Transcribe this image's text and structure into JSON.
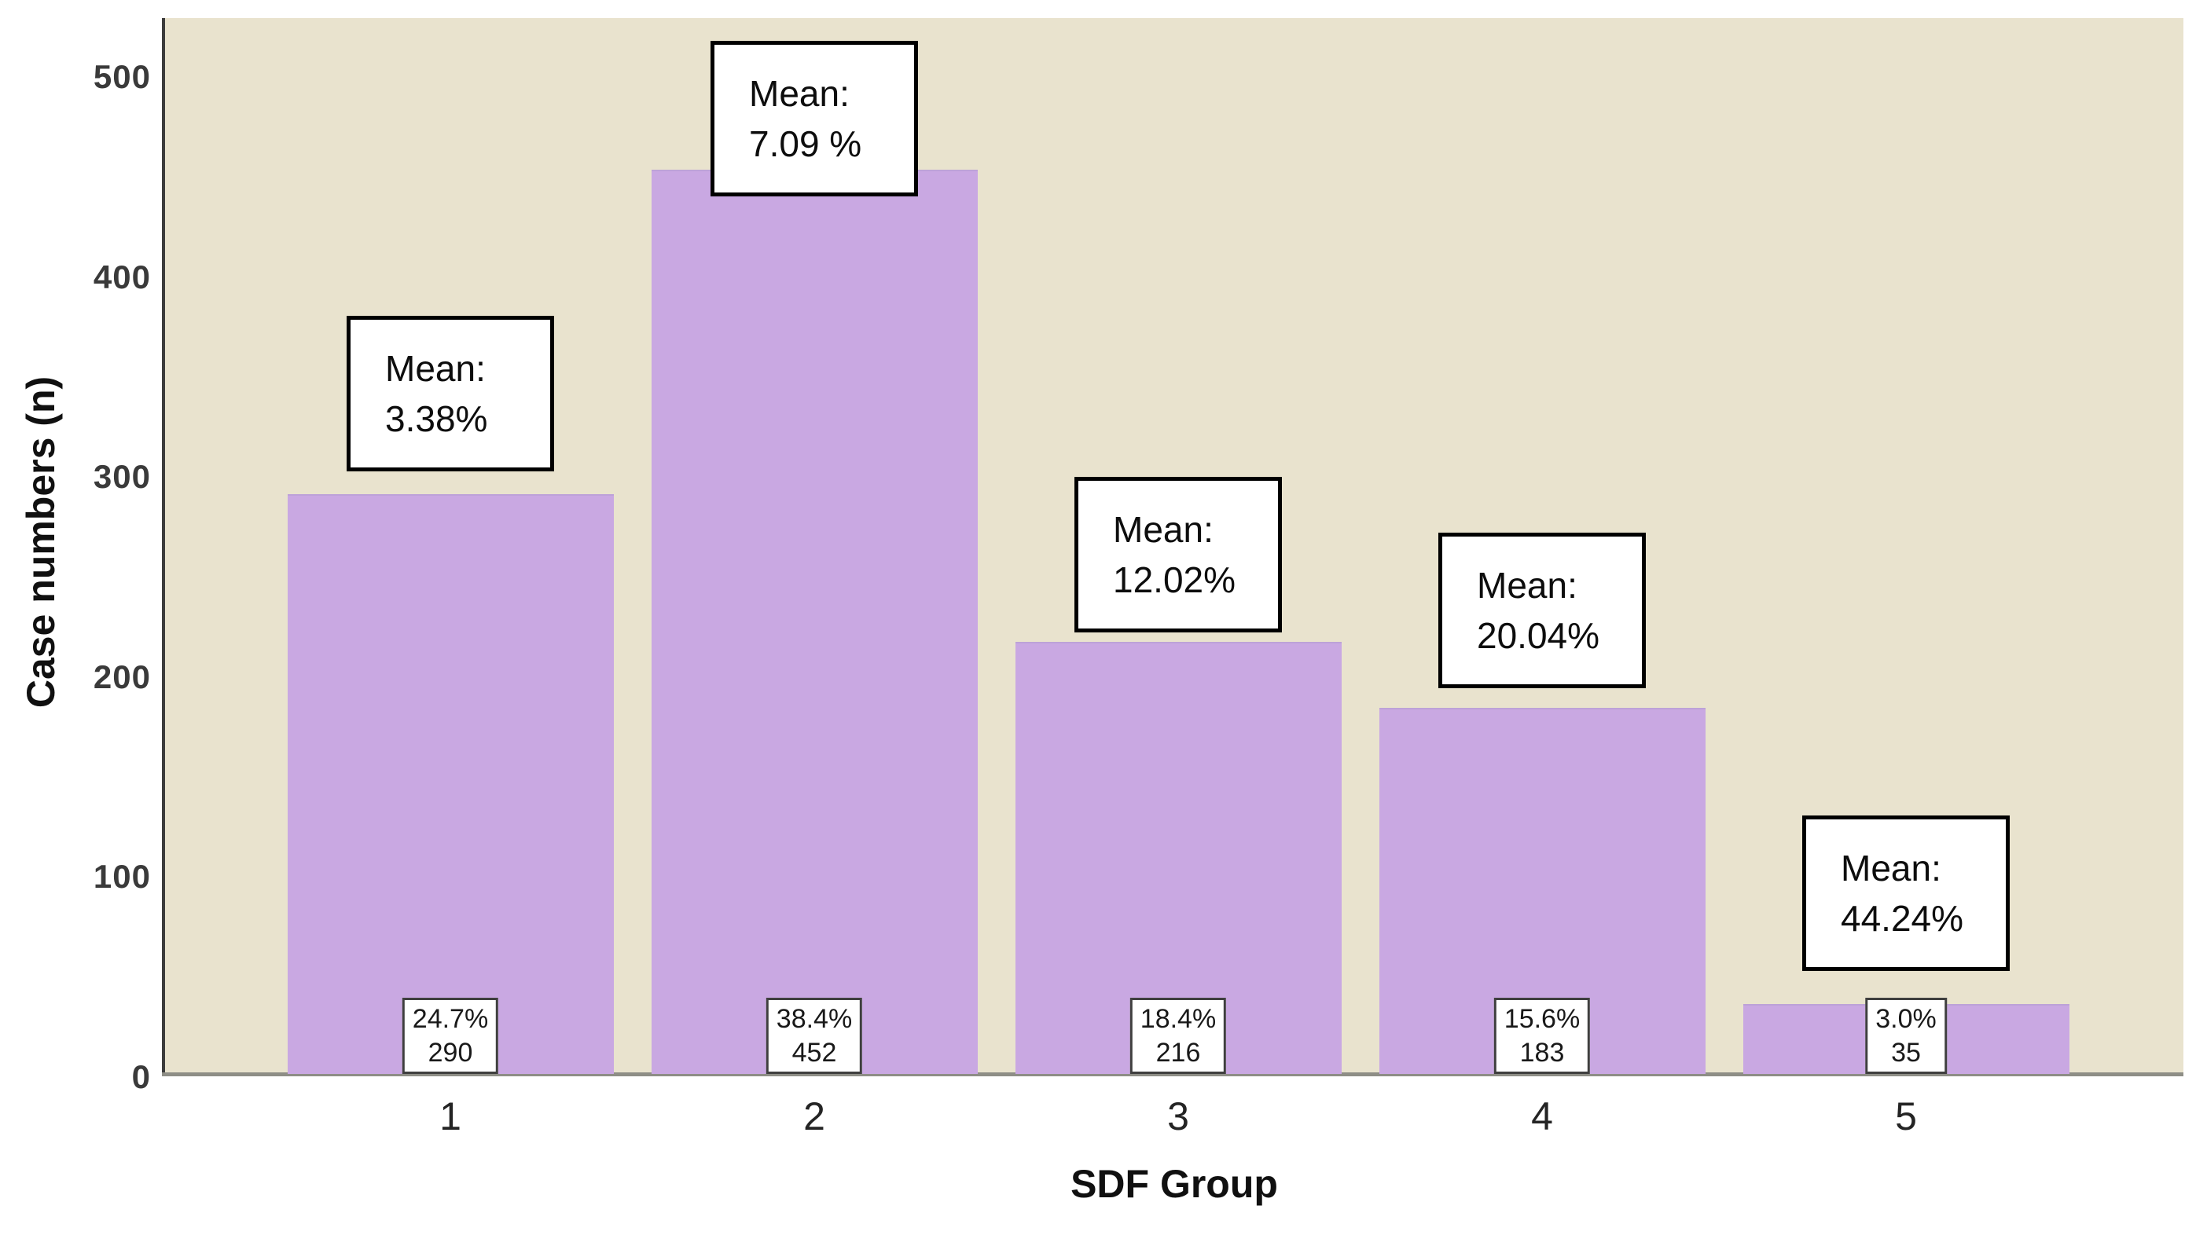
{
  "chart_data": {
    "type": "bar",
    "title": "",
    "xlabel": "SDF Group",
    "ylabel": "Case numbers (n)",
    "categories": [
      "1",
      "2",
      "3",
      "4",
      "5"
    ],
    "values": [
      290,
      452,
      216,
      183,
      35
    ],
    "yticks": [
      0,
      100,
      200,
      300,
      400,
      500
    ],
    "ylim": [
      0,
      528
    ],
    "grid": false,
    "legend": false,
    "colors": {
      "plot_background": "#e9e3ce",
      "bar_fill": "#c9a8e2",
      "bar_edge": "#bda2d8",
      "y_axis_line": "#3c3c3c",
      "x_baseline": "#8e8e86",
      "annotation_border": "#000000",
      "annotation_background": "#ffffff"
    },
    "mean_prefix": "Mean:",
    "bars": [
      {
        "category": "1",
        "value": 290,
        "percent_label": "24.7%",
        "count_label": "290",
        "mean_value": "3.38%",
        "mean_box_top": 402
      },
      {
        "category": "2",
        "value": 452,
        "percent_label": "38.4%",
        "count_label": "452",
        "mean_value": "7.09 %",
        "mean_box_top": 52
      },
      {
        "category": "3",
        "value": 216,
        "percent_label": "18.4%",
        "count_label": "216",
        "mean_value": "12.02%",
        "mean_box_top": 607
      },
      {
        "category": "4",
        "value": 183,
        "percent_label": "15.6%",
        "count_label": "183",
        "mean_value": "20.04%",
        "mean_box_top": 678
      },
      {
        "category": "5",
        "value": 35,
        "percent_label": "3.0%",
        "count_label": "35",
        "mean_value": "44.24%",
        "mean_box_top": 1038
      }
    ]
  }
}
